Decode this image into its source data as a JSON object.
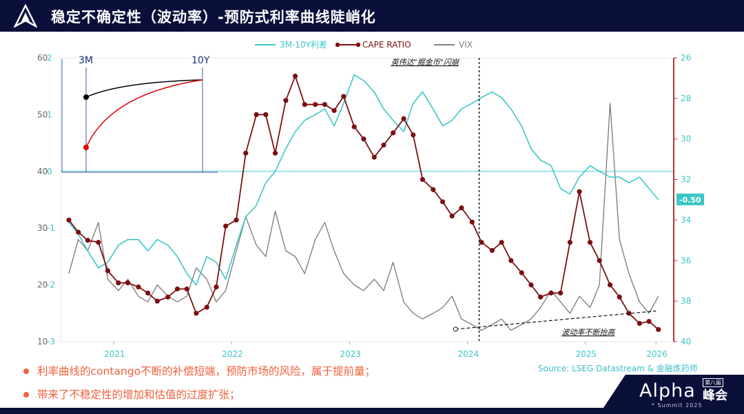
{
  "slide": {
    "title": "稳定不确定性（波动率）-预防式利率曲线陡峭化",
    "bullets": [
      "利率曲线的contango不断的补偿短端，预防市场的风险，属于提前量；",
      "带来了不稳定性的增加和估值的过度扩张；"
    ],
    "source": "Source: LSEG Datastream & 金融炼药师",
    "brand": {
      "name": "Alpha",
      "event": "峰会",
      "edition": "第八届",
      "summit": "* Summit 2025"
    }
  },
  "chart_data": {
    "type": "line",
    "legend": [
      "3M-10Y利差",
      "CAPE RATIO",
      "VIX"
    ],
    "colors": {
      "spread": "#3cc6c6",
      "cape": "#7b0f12",
      "vix": "#808080",
      "accent": "#f0603a"
    },
    "x_ticks": [
      "2021",
      "2022",
      "2023",
      "2024",
      "2025",
      "2026"
    ],
    "left_axis_vix": {
      "ticks": [
        10,
        20,
        30,
        40,
        50,
        60
      ],
      "range": [
        10,
        60
      ]
    },
    "left_axis_spread": {
      "ticks": [
        -3,
        -2,
        -1,
        0,
        1,
        2
      ],
      "range": [
        -3,
        2
      ]
    },
    "right_axis_cape": {
      "ticks": [
        26,
        28,
        30,
        32,
        34,
        36,
        38,
        40
      ],
      "range": [
        26,
        40
      ],
      "inverted": true
    },
    "annotations": {
      "event": "英伟达\"掘金币\"闪崩",
      "trend": "波动率不断抬高",
      "last_spread": "-0.50"
    },
    "inset": {
      "labels": [
        "3M",
        "10Y"
      ]
    },
    "series": [
      {
        "name": "CAPE RATIO",
        "axis": "right",
        "x": [
          2020.62,
          2020.7,
          2020.78,
          2020.87,
          2020.95,
          2021.04,
          2021.12,
          2021.21,
          2021.29,
          2021.37,
          2021.46,
          2021.54,
          2021.62,
          2021.7,
          2021.79,
          2021.87,
          2021.95,
          2022.04,
          2022.12,
          2022.21,
          2022.29,
          2022.37,
          2022.46,
          2022.54,
          2022.62,
          2022.71,
          2022.79,
          2022.87,
          2022.95,
          2023.04,
          2023.12,
          2023.21,
          2023.29,
          2023.37,
          2023.46,
          2023.54,
          2023.62,
          2023.71,
          2023.79,
          2023.87,
          2023.95,
          2024.04,
          2024.12,
          2024.21,
          2024.29,
          2024.37,
          2024.46,
          2024.54,
          2024.62,
          2024.71,
          2024.79,
          2024.87,
          2024.95,
          2025.04,
          2025.12,
          2025.21,
          2025.29,
          2025.37,
          2025.46,
          2025.54,
          2025.62
        ],
        "values": [
          34.0,
          34.6,
          35.0,
          35.1,
          36.5,
          37.1,
          37.1,
          37.3,
          37.6,
          38.0,
          37.8,
          37.4,
          37.4,
          38.6,
          38.3,
          37.3,
          34.3,
          34.0,
          30.7,
          28.8,
          28.8,
          30.7,
          28.1,
          26.9,
          28.3,
          28.3,
          28.3,
          28.6,
          27.9,
          29.4,
          30.0,
          30.9,
          30.3,
          29.7,
          29.0,
          29.8,
          32.0,
          32.5,
          33.1,
          33.8,
          33.4,
          34.1,
          35.1,
          35.5,
          35.1,
          36.0,
          36.6,
          37.2,
          37.8,
          37.6,
          37.6,
          35.1,
          32.6,
          35.1,
          36.0,
          37.2,
          37.8,
          38.6,
          39.1,
          39.0,
          39.4
        ]
      },
      {
        "name": "3M-10Y利差",
        "axis": "left-spread",
        "x": [
          2020.62,
          2020.7,
          2020.78,
          2020.87,
          2020.95,
          2021.04,
          2021.12,
          2021.21,
          2021.29,
          2021.37,
          2021.46,
          2021.54,
          2021.62,
          2021.7,
          2021.79,
          2021.87,
          2021.95,
          2022.04,
          2022.12,
          2022.21,
          2022.29,
          2022.37,
          2022.46,
          2022.54,
          2022.62,
          2022.71,
          2022.79,
          2022.87,
          2022.95,
          2023.04,
          2023.12,
          2023.21,
          2023.29,
          2023.37,
          2023.46,
          2023.54,
          2023.62,
          2023.71,
          2023.79,
          2023.87,
          2023.95,
          2024.04,
          2024.12,
          2024.21,
          2024.29,
          2024.37,
          2024.46,
          2024.54,
          2024.62,
          2024.71,
          2024.79,
          2024.87,
          2024.95,
          2025.04,
          2025.12,
          2025.21,
          2025.29,
          2025.37,
          2025.46,
          2025.54,
          2025.62
        ],
        "values": [
          -0.9,
          -1.1,
          -1.4,
          -1.7,
          -1.6,
          -1.3,
          -1.2,
          -1.2,
          -1.4,
          -1.2,
          -1.3,
          -1.5,
          -1.8,
          -2.0,
          -1.5,
          -1.6,
          -1.9,
          -1.3,
          -0.8,
          -0.6,
          -0.2,
          0.0,
          0.4,
          0.7,
          0.9,
          1.0,
          1.1,
          0.8,
          1.2,
          1.7,
          1.6,
          1.4,
          1.1,
          0.9,
          0.7,
          1.2,
          1.4,
          1.1,
          0.8,
          0.9,
          1.1,
          1.2,
          1.3,
          1.4,
          1.3,
          1.1,
          0.8,
          0.4,
          0.2,
          0.1,
          -0.3,
          -0.4,
          -0.1,
          0.1,
          0.0,
          -0.1,
          -0.1,
          -0.2,
          -0.1,
          -0.3,
          -0.5
        ]
      },
      {
        "name": "VIX",
        "axis": "left-vix",
        "x": [
          2020.62,
          2020.7,
          2020.78,
          2020.87,
          2020.95,
          2021.04,
          2021.12,
          2021.21,
          2021.29,
          2021.37,
          2021.46,
          2021.54,
          2021.62,
          2021.7,
          2021.79,
          2021.87,
          2021.95,
          2022.04,
          2022.12,
          2022.21,
          2022.29,
          2022.37,
          2022.46,
          2022.54,
          2022.62,
          2022.71,
          2022.79,
          2022.87,
          2022.95,
          2023.04,
          2023.12,
          2023.21,
          2023.29,
          2023.37,
          2023.46,
          2023.54,
          2023.62,
          2023.71,
          2023.79,
          2023.87,
          2023.95,
          2024.04,
          2024.12,
          2024.21,
          2024.29,
          2024.37,
          2024.46,
          2024.54,
          2024.62,
          2024.71,
          2024.79,
          2024.87,
          2024.95,
          2025.04,
          2025.12,
          2025.21,
          2025.29,
          2025.37,
          2025.46,
          2025.54,
          2025.62
        ],
        "values": [
          22,
          28,
          26,
          31,
          21,
          19,
          21,
          18,
          17,
          20,
          18,
          17,
          18,
          23,
          21,
          17,
          19,
          26,
          32,
          27,
          25,
          33,
          26,
          25,
          22,
          28,
          31,
          26,
          22,
          20,
          19,
          21,
          19,
          24,
          17,
          15,
          14,
          15,
          16,
          18,
          14,
          13,
          12,
          13,
          14,
          12,
          13,
          14,
          16,
          19,
          17,
          15,
          18,
          16,
          20,
          52,
          28,
          22,
          17,
          15,
          18
        ]
      }
    ]
  }
}
